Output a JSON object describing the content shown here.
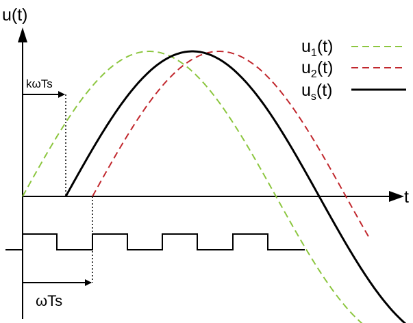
{
  "axes": {
    "y_label": "u(t)",
    "x_label": "t"
  },
  "legend": [
    {
      "base": "u",
      "sub": "1",
      "tail": "(t)",
      "color": "#8cc63f",
      "style": "dashed"
    },
    {
      "base": "u",
      "sub": "2",
      "tail": "(t)",
      "color": "#c1272d",
      "style": "dashed"
    },
    {
      "base": "u",
      "sub": "s",
      "tail": "(t)",
      "color": "#000000",
      "style": "solid"
    }
  ],
  "annotations": {
    "delay_top": "kωTs",
    "delay_bottom": "ωTs"
  },
  "signals": {
    "u1": {
      "color": "#8cc63f"
    },
    "u2": {
      "color": "#c1272d"
    },
    "us": {
      "color": "#000000"
    }
  }
}
